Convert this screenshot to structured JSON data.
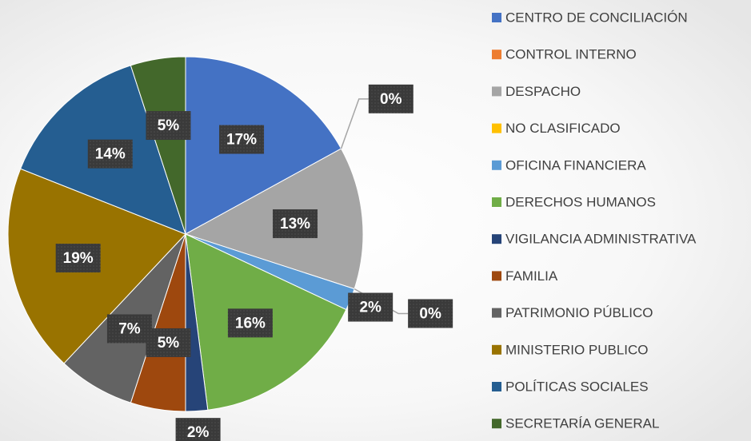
{
  "chart_data": {
    "type": "pie",
    "categories": [
      "CENTRO DE CONCILIACIÓN",
      "CONTROL INTERNO",
      "DESPACHO",
      "NO CLASIFICADO",
      "OFICINA FINANCIERA",
      "DERECHOS HUMANOS",
      "VIGILANCIA ADMINISTRATIVA",
      "FAMILIA",
      "PATRIMONIO PÚBLICO",
      "MINISTERIO PUBLICO",
      "POLÍTICAS SOCIALES",
      "SECRETARÍA GENERAL"
    ],
    "values": [
      17,
      0,
      13,
      0,
      2,
      16,
      2,
      5,
      7,
      19,
      14,
      5
    ],
    "value_labels": [
      "17%",
      "0%",
      "13%",
      "0%",
      "2%",
      "16%",
      "2%",
      "5%",
      "7%",
      "19%",
      "14%",
      "5%"
    ],
    "colors": [
      "#4472c4",
      "#ed7d31",
      "#a5a5a5",
      "#ffc000",
      "#5b9bd5",
      "#70ad47",
      "#264478",
      "#9e480e",
      "#636363",
      "#997300",
      "#255e91",
      "#43682b"
    ],
    "legend": "right"
  }
}
